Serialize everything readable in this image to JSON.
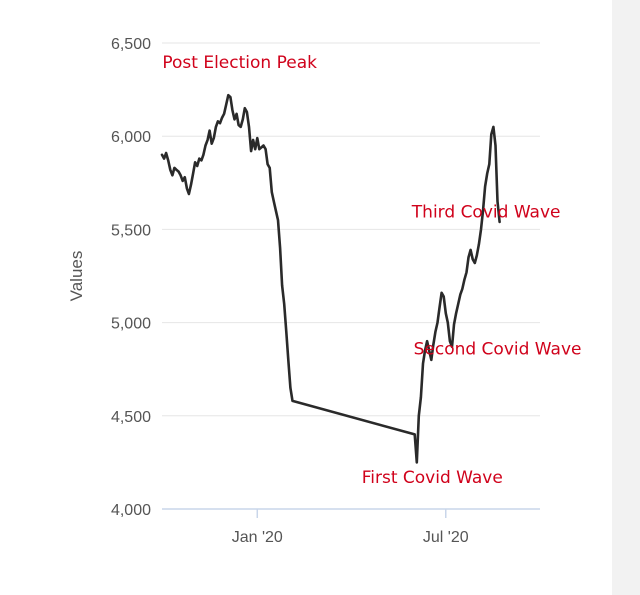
{
  "chart_data": {
    "type": "line",
    "title": "",
    "xlabel": "",
    "ylabel": "Values",
    "ylim": [
      4000,
      6500
    ],
    "xlim": [
      "2019-10-01",
      "2020-09-30"
    ],
    "grid": true,
    "y_ticks": [
      {
        "value": 4000,
        "label": "4,000"
      },
      {
        "value": 4500,
        "label": "4,500"
      },
      {
        "value": 5000,
        "label": "5,000"
      },
      {
        "value": 5500,
        "label": "5,500"
      },
      {
        "value": 6000,
        "label": "6,000"
      },
      {
        "value": 6500,
        "label": "6,500"
      }
    ],
    "x_ticks": [
      {
        "value": "2020-01-01",
        "label": "Jan '20"
      },
      {
        "value": "2020-07-01",
        "label": "Jul '20"
      }
    ],
    "line_color": "#2a2a2a",
    "annotation_color": "#d0021b",
    "annotations": [
      {
        "text": "Post Election Peak",
        "x": "2019-12-15",
        "y": 6365
      },
      {
        "text": "Third Covid Wave",
        "x": "2020-08-09",
        "y": 5565
      },
      {
        "text": "Second Covid Wave",
        "x": "2020-08-20",
        "y": 4830
      },
      {
        "text": "First Covid Wave",
        "x": "2020-06-18",
        "y": 4140
      }
    ],
    "series": [
      {
        "points": [
          [
            "2019-10-01",
            5900
          ],
          [
            "2019-10-03",
            5880
          ],
          [
            "2019-10-05",
            5910
          ],
          [
            "2019-10-07",
            5870
          ],
          [
            "2019-10-09",
            5820
          ],
          [
            "2019-10-11",
            5790
          ],
          [
            "2019-10-13",
            5830
          ],
          [
            "2019-10-15",
            5820
          ],
          [
            "2019-10-17",
            5810
          ],
          [
            "2019-10-19",
            5790
          ],
          [
            "2019-10-21",
            5760
          ],
          [
            "2019-10-23",
            5780
          ],
          [
            "2019-10-25",
            5720
          ],
          [
            "2019-10-27",
            5690
          ],
          [
            "2019-10-29",
            5740
          ],
          [
            "2019-10-31",
            5800
          ],
          [
            "2019-11-02",
            5860
          ],
          [
            "2019-11-04",
            5840
          ],
          [
            "2019-11-06",
            5880
          ],
          [
            "2019-11-08",
            5870
          ],
          [
            "2019-11-10",
            5900
          ],
          [
            "2019-11-12",
            5950
          ],
          [
            "2019-11-14",
            5980
          ],
          [
            "2019-11-16",
            6030
          ],
          [
            "2019-11-18",
            5960
          ],
          [
            "2019-11-20",
            5990
          ],
          [
            "2019-11-22",
            6050
          ],
          [
            "2019-11-24",
            6080
          ],
          [
            "2019-11-26",
            6070
          ],
          [
            "2019-11-28",
            6100
          ],
          [
            "2019-11-30",
            6120
          ],
          [
            "2019-12-02",
            6170
          ],
          [
            "2019-12-04",
            6220
          ],
          [
            "2019-12-06",
            6210
          ],
          [
            "2019-12-08",
            6140
          ],
          [
            "2019-12-10",
            6090
          ],
          [
            "2019-12-12",
            6120
          ],
          [
            "2019-12-14",
            6060
          ],
          [
            "2019-12-16",
            6050
          ],
          [
            "2019-12-18",
            6090
          ],
          [
            "2019-12-20",
            6150
          ],
          [
            "2019-12-22",
            6130
          ],
          [
            "2019-12-24",
            6050
          ],
          [
            "2019-12-26",
            5920
          ],
          [
            "2019-12-28",
            5980
          ],
          [
            "2019-12-30",
            5930
          ],
          [
            "2020-01-01",
            5990
          ],
          [
            "2020-01-03",
            5930
          ],
          [
            "2020-01-05",
            5940
          ],
          [
            "2020-01-07",
            5950
          ],
          [
            "2020-01-09",
            5930
          ],
          [
            "2020-01-11",
            5850
          ],
          [
            "2020-01-13",
            5830
          ],
          [
            "2020-01-15",
            5700
          ],
          [
            "2020-01-17",
            5650
          ],
          [
            "2020-01-19",
            5600
          ],
          [
            "2020-01-21",
            5550
          ],
          [
            "2020-01-23",
            5400
          ],
          [
            "2020-01-25",
            5200
          ],
          [
            "2020-01-27",
            5100
          ],
          [
            "2020-01-29",
            4950
          ],
          [
            "2020-01-31",
            4800
          ],
          [
            "2020-02-02",
            4650
          ],
          [
            "2020-02-04",
            4580
          ],
          [
            "2020-06-01",
            4400
          ],
          [
            "2020-06-03",
            4250
          ],
          [
            "2020-06-05",
            4500
          ],
          [
            "2020-06-07",
            4600
          ],
          [
            "2020-06-09",
            4780
          ],
          [
            "2020-06-11",
            4850
          ],
          [
            "2020-06-13",
            4900
          ],
          [
            "2020-06-15",
            4850
          ],
          [
            "2020-06-17",
            4800
          ],
          [
            "2020-06-19",
            4880
          ],
          [
            "2020-06-21",
            4950
          ],
          [
            "2020-06-23",
            5000
          ],
          [
            "2020-06-25",
            5080
          ],
          [
            "2020-06-27",
            5160
          ],
          [
            "2020-06-29",
            5140
          ],
          [
            "2020-07-01",
            5050
          ],
          [
            "2020-07-03",
            5000
          ],
          [
            "2020-07-05",
            4900
          ],
          [
            "2020-07-07",
            4870
          ],
          [
            "2020-07-09",
            4990
          ],
          [
            "2020-07-11",
            5050
          ],
          [
            "2020-07-13",
            5100
          ],
          [
            "2020-07-15",
            5150
          ],
          [
            "2020-07-17",
            5180
          ],
          [
            "2020-07-19",
            5230
          ],
          [
            "2020-07-21",
            5270
          ],
          [
            "2020-07-23",
            5350
          ],
          [
            "2020-07-25",
            5390
          ],
          [
            "2020-07-27",
            5340
          ],
          [
            "2020-07-29",
            5320
          ],
          [
            "2020-07-31",
            5360
          ],
          [
            "2020-08-02",
            5420
          ],
          [
            "2020-08-04",
            5500
          ],
          [
            "2020-08-06",
            5600
          ],
          [
            "2020-08-08",
            5730
          ],
          [
            "2020-08-10",
            5800
          ],
          [
            "2020-08-12",
            5850
          ],
          [
            "2020-08-14",
            6010
          ],
          [
            "2020-08-16",
            6050
          ],
          [
            "2020-08-18",
            5950
          ],
          [
            "2020-08-20",
            5650
          ],
          [
            "2020-08-22",
            5540
          ]
        ]
      }
    ]
  }
}
